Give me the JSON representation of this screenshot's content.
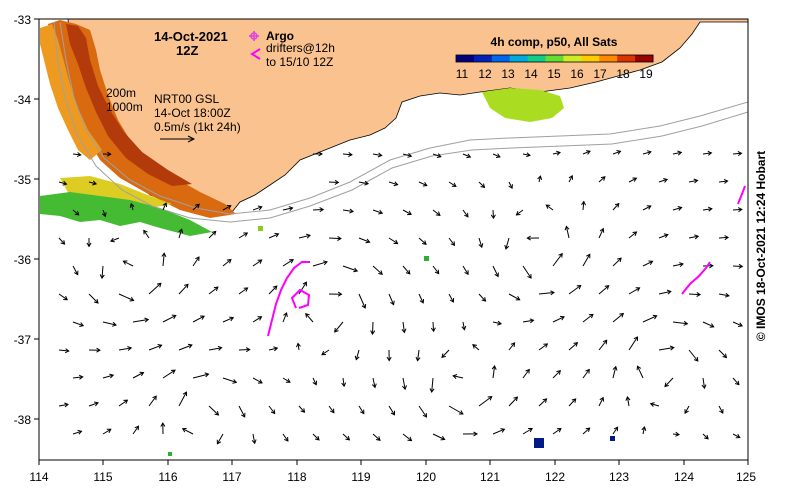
{
  "title": {
    "date": "14-Oct-2021",
    "time": "12Z"
  },
  "legend": {
    "argo_label": "Argo",
    "drifter_label": "drifters@12h",
    "drifter_range": "to 15/10 12Z",
    "argo_color": "#e040e0",
    "drifter_color": "#ff00ff"
  },
  "colorbar": {
    "title": "4h comp, p50, All Sats",
    "ticks": [
      "11",
      "12",
      "13",
      "14",
      "15",
      "16",
      "17",
      "18",
      "19"
    ],
    "colors": [
      "#00007f",
      "#0022bb",
      "#0066ee",
      "#00aadd",
      "#11cc88",
      "#66dd33",
      "#ccee22",
      "#ffcc00",
      "#ff8800",
      "#dd3300",
      "#990000"
    ]
  },
  "annotation": {
    "isobath_shallow": "200m",
    "isobath_deep": "1000m",
    "product": "NRT00 GSL",
    "valid_time": "14-Oct 18:00Z",
    "scale_vector": "0.5m/s (1kt 24h)"
  },
  "axes": {
    "x_ticks": [
      "114",
      "115",
      "116",
      "117",
      "118",
      "119",
      "120",
      "121",
      "122",
      "123",
      "124",
      "125"
    ],
    "y_ticks": [
      "-33",
      "-34",
      "-35",
      "-36",
      "-37",
      "-38"
    ],
    "lon_range": [
      114,
      125
    ],
    "lat_range": [
      -38.5,
      -33
    ]
  },
  "credit": "© IMOS 18-Oct-2021 12:24 Hobart",
  "colors": {
    "land": "#f9c28f",
    "current_arrow": "#000000",
    "isobath": "#a0a0a0"
  }
}
